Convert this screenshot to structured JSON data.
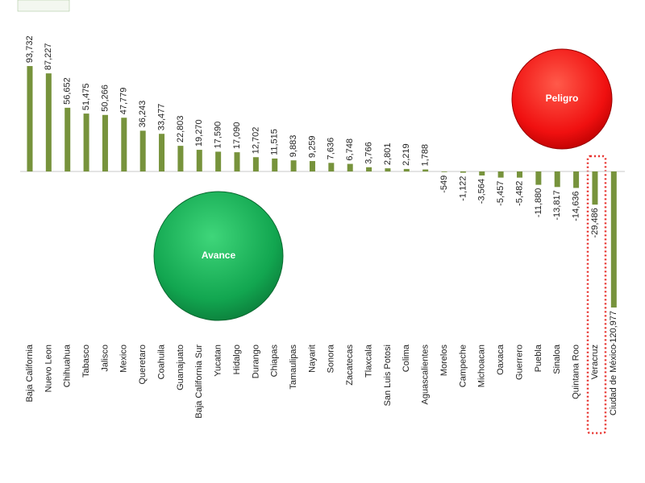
{
  "chart_data": {
    "type": "bar",
    "categories": [
      "Baja California",
      "Nuevo Leon",
      "Chihuahua",
      "Tabasco",
      "Jalisco",
      "Mexico",
      "Queretaro",
      "Coahuila",
      "Guanajuato",
      "Baja California Sur",
      "Yucatan",
      "Hidalgo",
      "Durango",
      "Chiapas",
      "Tamaulipas",
      "Nayarit",
      "Sonora",
      "Zacatecas",
      "Tlaxcala",
      "San Luis Potosi",
      "Colima",
      "Aguascalientes",
      "Morelos",
      "Campeche",
      "Michoacan",
      "Oaxaca",
      "Guerrero",
      "Puebla",
      "Sinaloa",
      "Quintana Roo",
      "Veracruz",
      "Ciudad de México"
    ],
    "values": [
      93732,
      87227,
      56652,
      51475,
      50266,
      47779,
      36243,
      33477,
      22803,
      19270,
      17590,
      17090,
      12702,
      11515,
      9883,
      9259,
      7636,
      6748,
      3766,
      2801,
      2219,
      1788,
      -549,
      -1122,
      -3564,
      -5457,
      -5482,
      -11880,
      -13817,
      -14636,
      -29486,
      -120977
    ],
    "value_labels": [
      "93,732",
      "87,227",
      "56,652",
      "51,475",
      "50,266",
      "47,779",
      "36,243",
      "33,477",
      "22,803",
      "19,270",
      "17,590",
      "17,090",
      "12,702",
      "11,515",
      "9,883",
      "9,259",
      "7,636",
      "6,748",
      "3,766",
      "2,801",
      "2,219",
      "1,788",
      "-549",
      "-1,122",
      "-3,564",
      "-5,457",
      "-5,482",
      "-11,880",
      "-13,817",
      "-14,636",
      "-29,486",
      "-120,977"
    ],
    "color": "#77933c",
    "negative_label_color": "#e8322e",
    "annotations": [
      "Avance",
      "Peligro"
    ]
  }
}
